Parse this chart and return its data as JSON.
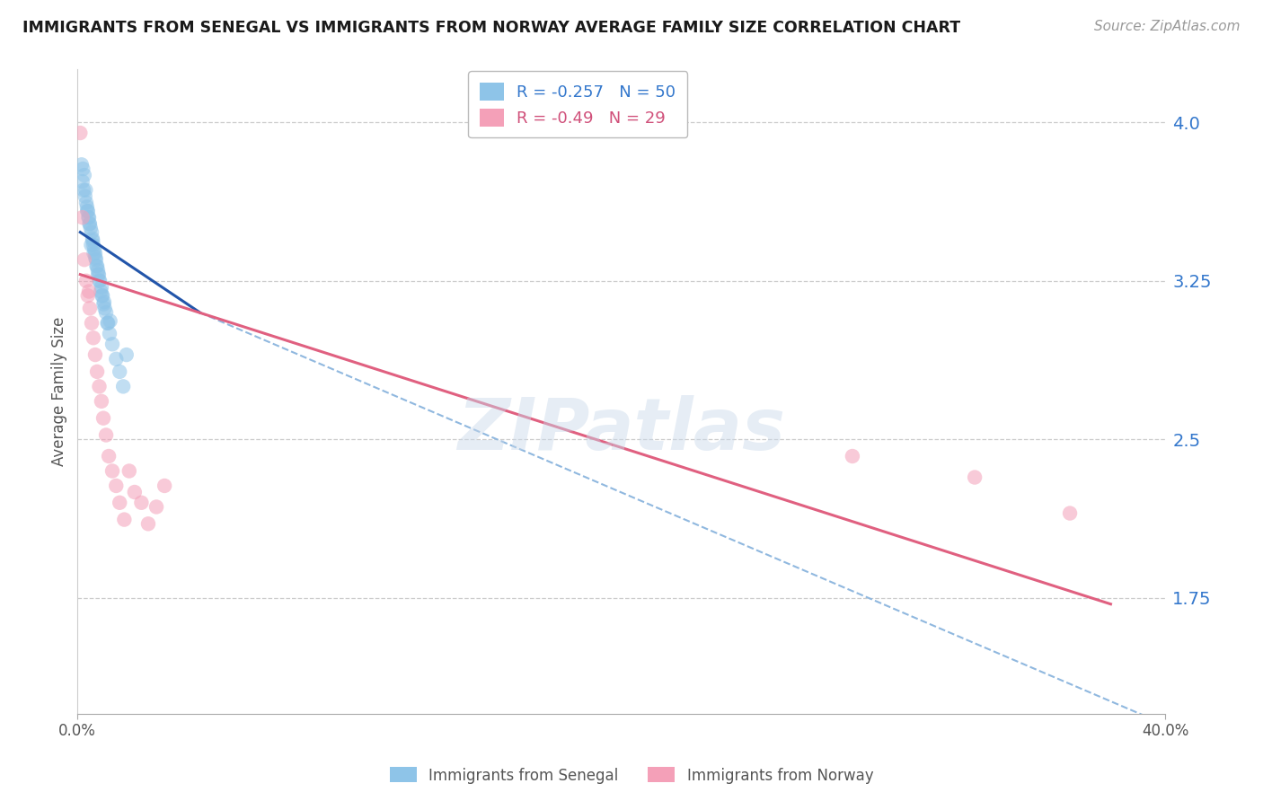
{
  "title": "IMMIGRANTS FROM SENEGAL VS IMMIGRANTS FROM NORWAY AVERAGE FAMILY SIZE CORRELATION CHART",
  "source": "Source: ZipAtlas.com",
  "ylabel": "Average Family Size",
  "yticks": [
    1.75,
    2.5,
    3.25,
    4.0
  ],
  "xlim": [
    0.0,
    40.0
  ],
  "ylim": [
    1.2,
    4.25
  ],
  "senegal_R": -0.257,
  "senegal_N": 50,
  "norway_R": -0.49,
  "norway_N": 29,
  "senegal_color": "#8ec4e8",
  "norway_color": "#f4a0b8",
  "trend_blue_solid_color": "#2255aa",
  "trend_pink_solid_color": "#e06080",
  "trend_dashed_color": "#90b8df",
  "background_color": "#ffffff",
  "grid_color": "#cccccc",
  "title_color": "#1a1a1a",
  "right_axis_color": "#3377cc",
  "watermark": "ZIPatlas",
  "senegal_color_alpha": 0.55,
  "norway_color_alpha": 0.55,
  "senegal_x": [
    0.15,
    0.18,
    0.22,
    0.28,
    0.32,
    0.35,
    0.38,
    0.42,
    0.45,
    0.48,
    0.52,
    0.55,
    0.58,
    0.62,
    0.65,
    0.68,
    0.72,
    0.75,
    0.78,
    0.82,
    0.88,
    0.92,
    0.98,
    1.05,
    1.12,
    1.18,
    1.28,
    1.42,
    1.55,
    1.68,
    0.25,
    0.3,
    0.4,
    0.5,
    0.6,
    0.7,
    0.8,
    0.9,
    1.0,
    1.1,
    0.2,
    0.36,
    0.44,
    0.56,
    0.66,
    0.76,
    0.86,
    0.96,
    1.2,
    1.8
  ],
  "senegal_y": [
    3.8,
    3.72,
    3.68,
    3.65,
    3.62,
    3.6,
    3.58,
    3.55,
    3.52,
    3.5,
    3.48,
    3.45,
    3.42,
    3.4,
    3.38,
    3.35,
    3.32,
    3.3,
    3.28,
    3.25,
    3.22,
    3.18,
    3.15,
    3.1,
    3.05,
    3.0,
    2.95,
    2.88,
    2.82,
    2.75,
    3.75,
    3.68,
    3.55,
    3.42,
    3.38,
    3.32,
    3.25,
    3.18,
    3.12,
    3.05,
    3.78,
    3.58,
    3.52,
    3.44,
    3.36,
    3.28,
    3.2,
    3.14,
    3.06,
    2.9
  ],
  "norway_x": [
    0.1,
    0.18,
    0.25,
    0.32,
    0.38,
    0.45,
    0.52,
    0.58,
    0.65,
    0.72,
    0.8,
    0.88,
    0.95,
    1.05,
    1.15,
    1.28,
    1.42,
    1.55,
    1.72,
    1.9,
    2.1,
    2.35,
    2.6,
    2.9,
    3.2,
    28.5,
    33.0,
    36.5,
    0.42
  ],
  "norway_y": [
    3.95,
    3.55,
    3.35,
    3.25,
    3.18,
    3.12,
    3.05,
    2.98,
    2.9,
    2.82,
    2.75,
    2.68,
    2.6,
    2.52,
    2.42,
    2.35,
    2.28,
    2.2,
    2.12,
    2.35,
    2.25,
    2.2,
    2.1,
    2.18,
    2.28,
    2.42,
    2.32,
    2.15,
    3.2
  ],
  "blue_solid_x0": 0.1,
  "blue_solid_x1": 4.5,
  "blue_solid_y0": 3.48,
  "blue_solid_y1": 3.1,
  "blue_dashed_x0": 4.5,
  "blue_dashed_x1": 40.0,
  "blue_dashed_y0": 3.1,
  "blue_dashed_y1": 1.15,
  "pink_solid_x0": 0.1,
  "pink_solid_x1": 38.0,
  "pink_solid_y0": 3.28,
  "pink_solid_y1": 1.72
}
